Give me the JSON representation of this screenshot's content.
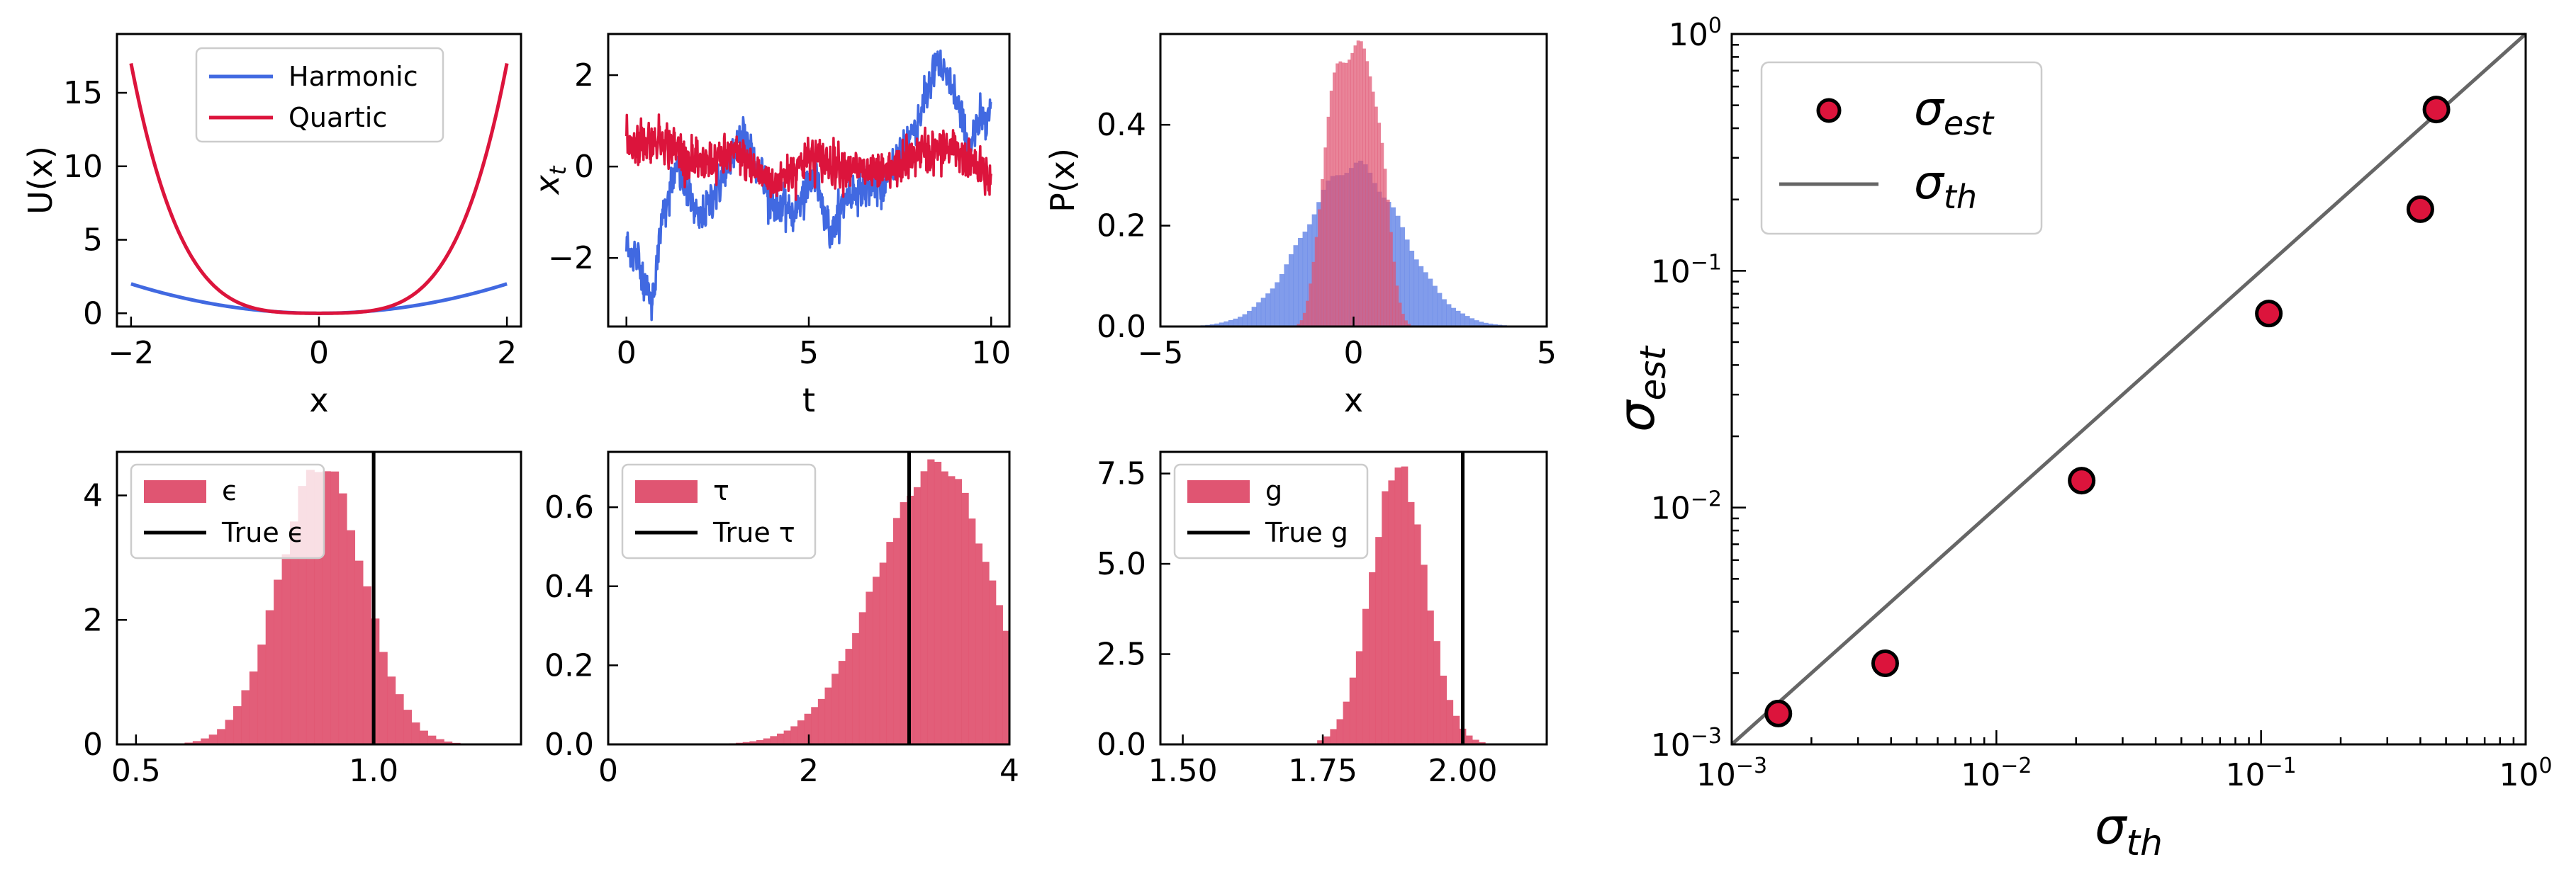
{
  "colors": {
    "harmonic": "#4169e1",
    "quartic": "#dc143c",
    "hist_blue": "#6b8be8",
    "hist_red": "#e05572",
    "estimate_fill": "#dc143c",
    "theory_line": "#666666"
  },
  "chart_data": [
    {
      "id": "potential",
      "type": "line",
      "xlabel": "x",
      "ylabel": "U(x)",
      "xlim": [
        -2.15,
        2.15
      ],
      "ylim": [
        -0.9,
        19.0
      ],
      "xticks": [
        -2,
        0,
        2
      ],
      "xtick_labels": [
        "−2",
        "0",
        "2"
      ],
      "yticks": [
        0,
        5,
        10,
        15
      ],
      "ytick_labels": [
        "0",
        "5",
        "10",
        "15"
      ],
      "series": [
        {
          "name": "Harmonic",
          "formula": "0.5*x^2",
          "x_range": [
            -2,
            2
          ]
        },
        {
          "name": "Quartic",
          "formula": "x^4 + 0.25*x^2",
          "x_range": [
            -2,
            2
          ]
        }
      ],
      "legend": [
        "Harmonic",
        "Quartic"
      ],
      "legend_position": "top-center"
    },
    {
      "id": "trajectories",
      "type": "line",
      "xlabel": "t",
      "ylabel": "x_t",
      "ylabel_main": "x",
      "ylabel_sub": "t",
      "xlim": [
        -0.5,
        10.5
      ],
      "ylim": [
        -3.5,
        2.9
      ],
      "xticks": [
        0,
        5,
        10
      ],
      "xtick_labels": [
        "0",
        "5",
        "10"
      ],
      "yticks": [
        -2,
        0,
        2
      ],
      "ytick_labels": [
        "−2",
        "0",
        "2"
      ],
      "series": [
        {
          "name": "Harmonic trajectory",
          "start": -1.8,
          "end": 1.3,
          "min": -3.1,
          "max": 2.5
        },
        {
          "name": "Quartic trajectory",
          "start": 0.5,
          "end": -0.3,
          "min": -0.95,
          "max": 0.95
        }
      ]
    },
    {
      "id": "stationary_density",
      "type": "bar",
      "xlabel": "x",
      "ylabel": "P(x)",
      "xlim": [
        -5,
        5
      ],
      "ylim": [
        0,
        0.58
      ],
      "xticks": [
        -5,
        0,
        5
      ],
      "xtick_labels": [
        "−5",
        "0",
        "5"
      ],
      "yticks": [
        0.0,
        0.2,
        0.4
      ],
      "ytick_labels": [
        "0.0",
        "0.2",
        "0.4"
      ],
      "series": [
        {
          "name": "Harmonic",
          "distribution": "gaussian",
          "mean": 0.0,
          "std": 1.25,
          "peak": 0.32
        },
        {
          "name": "Quartic",
          "distribution": "quartic",
          "peak": 0.55,
          "support": [
            -1.6,
            1.6
          ]
        }
      ]
    },
    {
      "id": "posterior_epsilon",
      "type": "bar",
      "xlabel": "",
      "ylabel": "",
      "xlim": [
        0.46,
        1.31
      ],
      "ylim": [
        0,
        4.7
      ],
      "xticks": [
        0.5,
        1.0
      ],
      "xtick_labels": [
        "0.5",
        "1.0"
      ],
      "yticks": [
        0,
        2,
        4
      ],
      "ytick_labels": [
        "0",
        "2",
        "4"
      ],
      "posterior": {
        "mean": 0.89,
        "std": 0.088,
        "peak": 4.5,
        "range": [
          0.5,
          1.25
        ]
      },
      "true_value": 1.0,
      "legend": [
        "ϵ",
        "True ϵ"
      ],
      "legend_position": "top-left"
    },
    {
      "id": "posterior_tau",
      "type": "bar",
      "xlabel": "",
      "ylabel": "",
      "xlim": [
        0,
        4
      ],
      "ylim": [
        0,
        0.74
      ],
      "xticks": [
        0,
        2,
        4
      ],
      "xtick_labels": [
        "0",
        "2",
        "4"
      ],
      "yticks": [
        0.0,
        0.2,
        0.4,
        0.6
      ],
      "ytick_labels": [
        "0.0",
        "0.2",
        "0.4",
        "0.6"
      ],
      "posterior": {
        "mode": 3.3,
        "left_std": 0.62,
        "right_std": 0.5,
        "peak": 0.71,
        "range": [
          1.0,
          4.0
        ]
      },
      "true_value": 3.0,
      "legend": [
        "τ",
        "True τ"
      ],
      "legend_position": "top-left"
    },
    {
      "id": "posterior_g",
      "type": "bar",
      "xlabel": "",
      "ylabel": "",
      "xlim": [
        1.46,
        2.15
      ],
      "ylim": [
        0,
        8.1
      ],
      "xticks": [
        1.5,
        1.75,
        2.0
      ],
      "xtick_labels": [
        "1.50",
        "1.75",
        "2.00"
      ],
      "yticks": [
        0.0,
        2.5,
        5.0,
        7.5
      ],
      "ytick_labels": [
        "0.0",
        "2.5",
        "5.0",
        "7.5"
      ],
      "posterior": {
        "mean": 1.885,
        "std": 0.048,
        "peak": 7.7,
        "range": [
          1.74,
          2.04
        ]
      },
      "true_value": 2.0,
      "legend": [
        "g",
        "True g"
      ],
      "legend_position": "top-left"
    },
    {
      "id": "sigma_comparison",
      "type": "scatter",
      "xscale": "log",
      "yscale": "log",
      "xlim": [
        0.001,
        1
      ],
      "ylim": [
        0.001,
        1
      ],
      "xlabel_main": "σ",
      "xlabel_sub": "th",
      "ylabel_main": "σ",
      "ylabel_sub": "est",
      "ticks_exponents": [
        -3,
        -2,
        -1,
        0
      ],
      "tick_base": "10",
      "points": [
        {
          "sigma_th": 0.0015,
          "sigma_est": 0.00135
        },
        {
          "sigma_th": 0.0038,
          "sigma_est": 0.0022
        },
        {
          "sigma_th": 0.021,
          "sigma_est": 0.013
        },
        {
          "sigma_th": 0.107,
          "sigma_est": 0.066
        },
        {
          "sigma_th": 0.4,
          "sigma_est": 0.182
        },
        {
          "sigma_th": 0.46,
          "sigma_est": 0.48
        }
      ],
      "reference_line": {
        "from": 0.001,
        "to": 1
      },
      "legend": [
        {
          "label_main": "σ",
          "label_sub": "est",
          "marker": "point"
        },
        {
          "label_main": "σ",
          "label_sub": "th",
          "marker": "line"
        }
      ],
      "legend_position": "top-left"
    }
  ]
}
